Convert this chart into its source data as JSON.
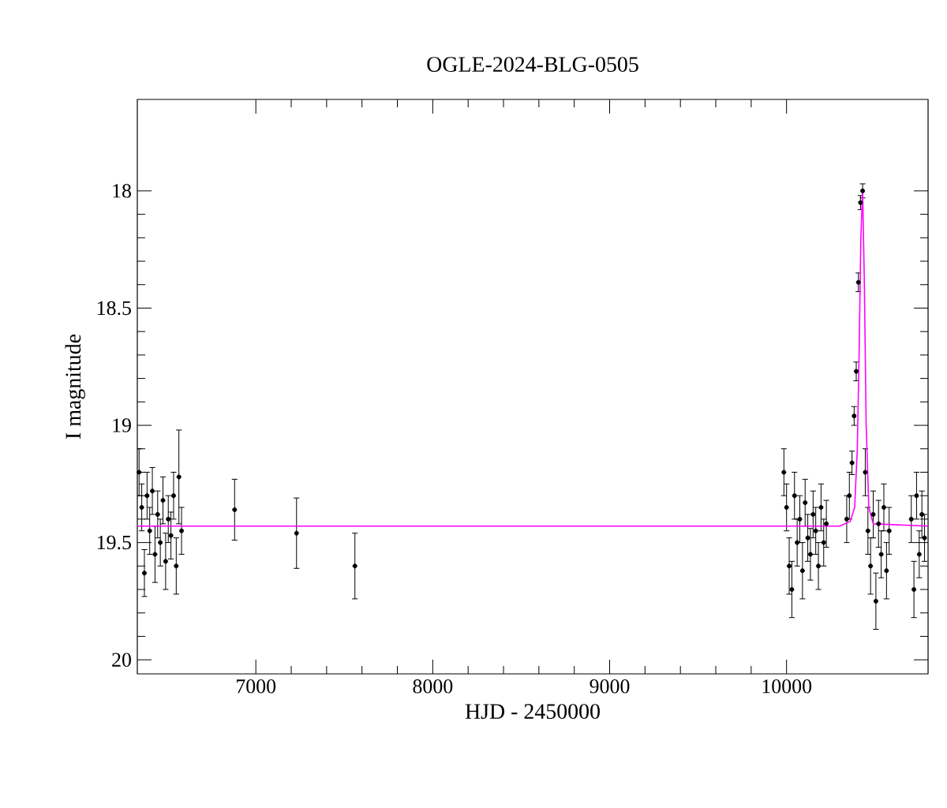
{
  "chart_data": {
    "type": "scatter",
    "title": "OGLE-2024-BLG-0505",
    "xlabel": "HJD - 2450000",
    "ylabel": "I magnitude",
    "xlim": [
      6330,
      10800
    ],
    "ylim": [
      20.06,
      17.61
    ],
    "xticks": [
      7000,
      8000,
      9000,
      10000
    ],
    "yticks": [
      18,
      18.5,
      19,
      19.5,
      20
    ],
    "series": [
      {
        "type": "scatter",
        "color": "#000000",
        "marker": "circle",
        "x": [
          6340,
          6355,
          6370,
          6385,
          6400,
          6415,
          6430,
          6445,
          6460,
          6475,
          6490,
          6505,
          6520,
          6535,
          6550,
          6565,
          6580,
          6880,
          7230,
          7560,
          9985,
          10000,
          10015,
          10030,
          10045,
          10060,
          10075,
          10090,
          10105,
          10120,
          10135,
          10150,
          10165,
          10180,
          10195,
          10210,
          10225,
          10340,
          10355,
          10370,
          10382,
          10394,
          10406,
          10418,
          10430,
          10445,
          10460,
          10475,
          10490,
          10505,
          10520,
          10535,
          10550,
          10565,
          10580,
          10705,
          10720,
          10735,
          10750,
          10765,
          10780
        ],
        "values": [
          19.2,
          19.35,
          19.63,
          19.3,
          19.45,
          19.28,
          19.55,
          19.38,
          19.5,
          19.32,
          19.58,
          19.4,
          19.47,
          19.3,
          19.6,
          19.22,
          19.45,
          19.36,
          19.46,
          19.6,
          19.2,
          19.35,
          19.6,
          19.7,
          19.3,
          19.5,
          19.4,
          19.62,
          19.33,
          19.48,
          19.55,
          19.38,
          19.45,
          19.6,
          19.35,
          19.5,
          19.42,
          19.4,
          19.3,
          19.16,
          18.96,
          18.77,
          18.39,
          18.05,
          18.0,
          19.2,
          19.45,
          19.6,
          19.38,
          19.75,
          19.42,
          19.55,
          19.35,
          19.62,
          19.45,
          19.4,
          19.7,
          19.3,
          19.55,
          19.38,
          19.48
        ],
        "errors": [
          0.1,
          0.1,
          0.1,
          0.1,
          0.1,
          0.1,
          0.12,
          0.1,
          0.1,
          0.1,
          0.12,
          0.1,
          0.1,
          0.1,
          0.12,
          0.2,
          0.1,
          0.13,
          0.15,
          0.14,
          0.1,
          0.1,
          0.12,
          0.12,
          0.1,
          0.1,
          0.1,
          0.12,
          0.1,
          0.1,
          0.11,
          0.1,
          0.1,
          0.1,
          0.1,
          0.1,
          0.1,
          0.1,
          0.1,
          0.05,
          0.04,
          0.04,
          0.04,
          0.03,
          0.03,
          0.1,
          0.1,
          0.12,
          0.1,
          0.12,
          0.1,
          0.1,
          0.1,
          0.12,
          0.1,
          0.1,
          0.12,
          0.1,
          0.1,
          0.1,
          0.1
        ]
      },
      {
        "type": "line",
        "color": "#ff00ff",
        "marker": "none",
        "x": [
          6330,
          10300,
          10360,
          10385,
          10400,
          10410,
          10420,
          10430,
          10440,
          10450,
          10465,
          10490,
          10800
        ],
        "values": [
          19.43,
          19.43,
          19.41,
          19.35,
          19.1,
          18.7,
          18.2,
          18.0,
          18.4,
          19.0,
          19.35,
          19.42,
          19.43
        ]
      }
    ]
  }
}
